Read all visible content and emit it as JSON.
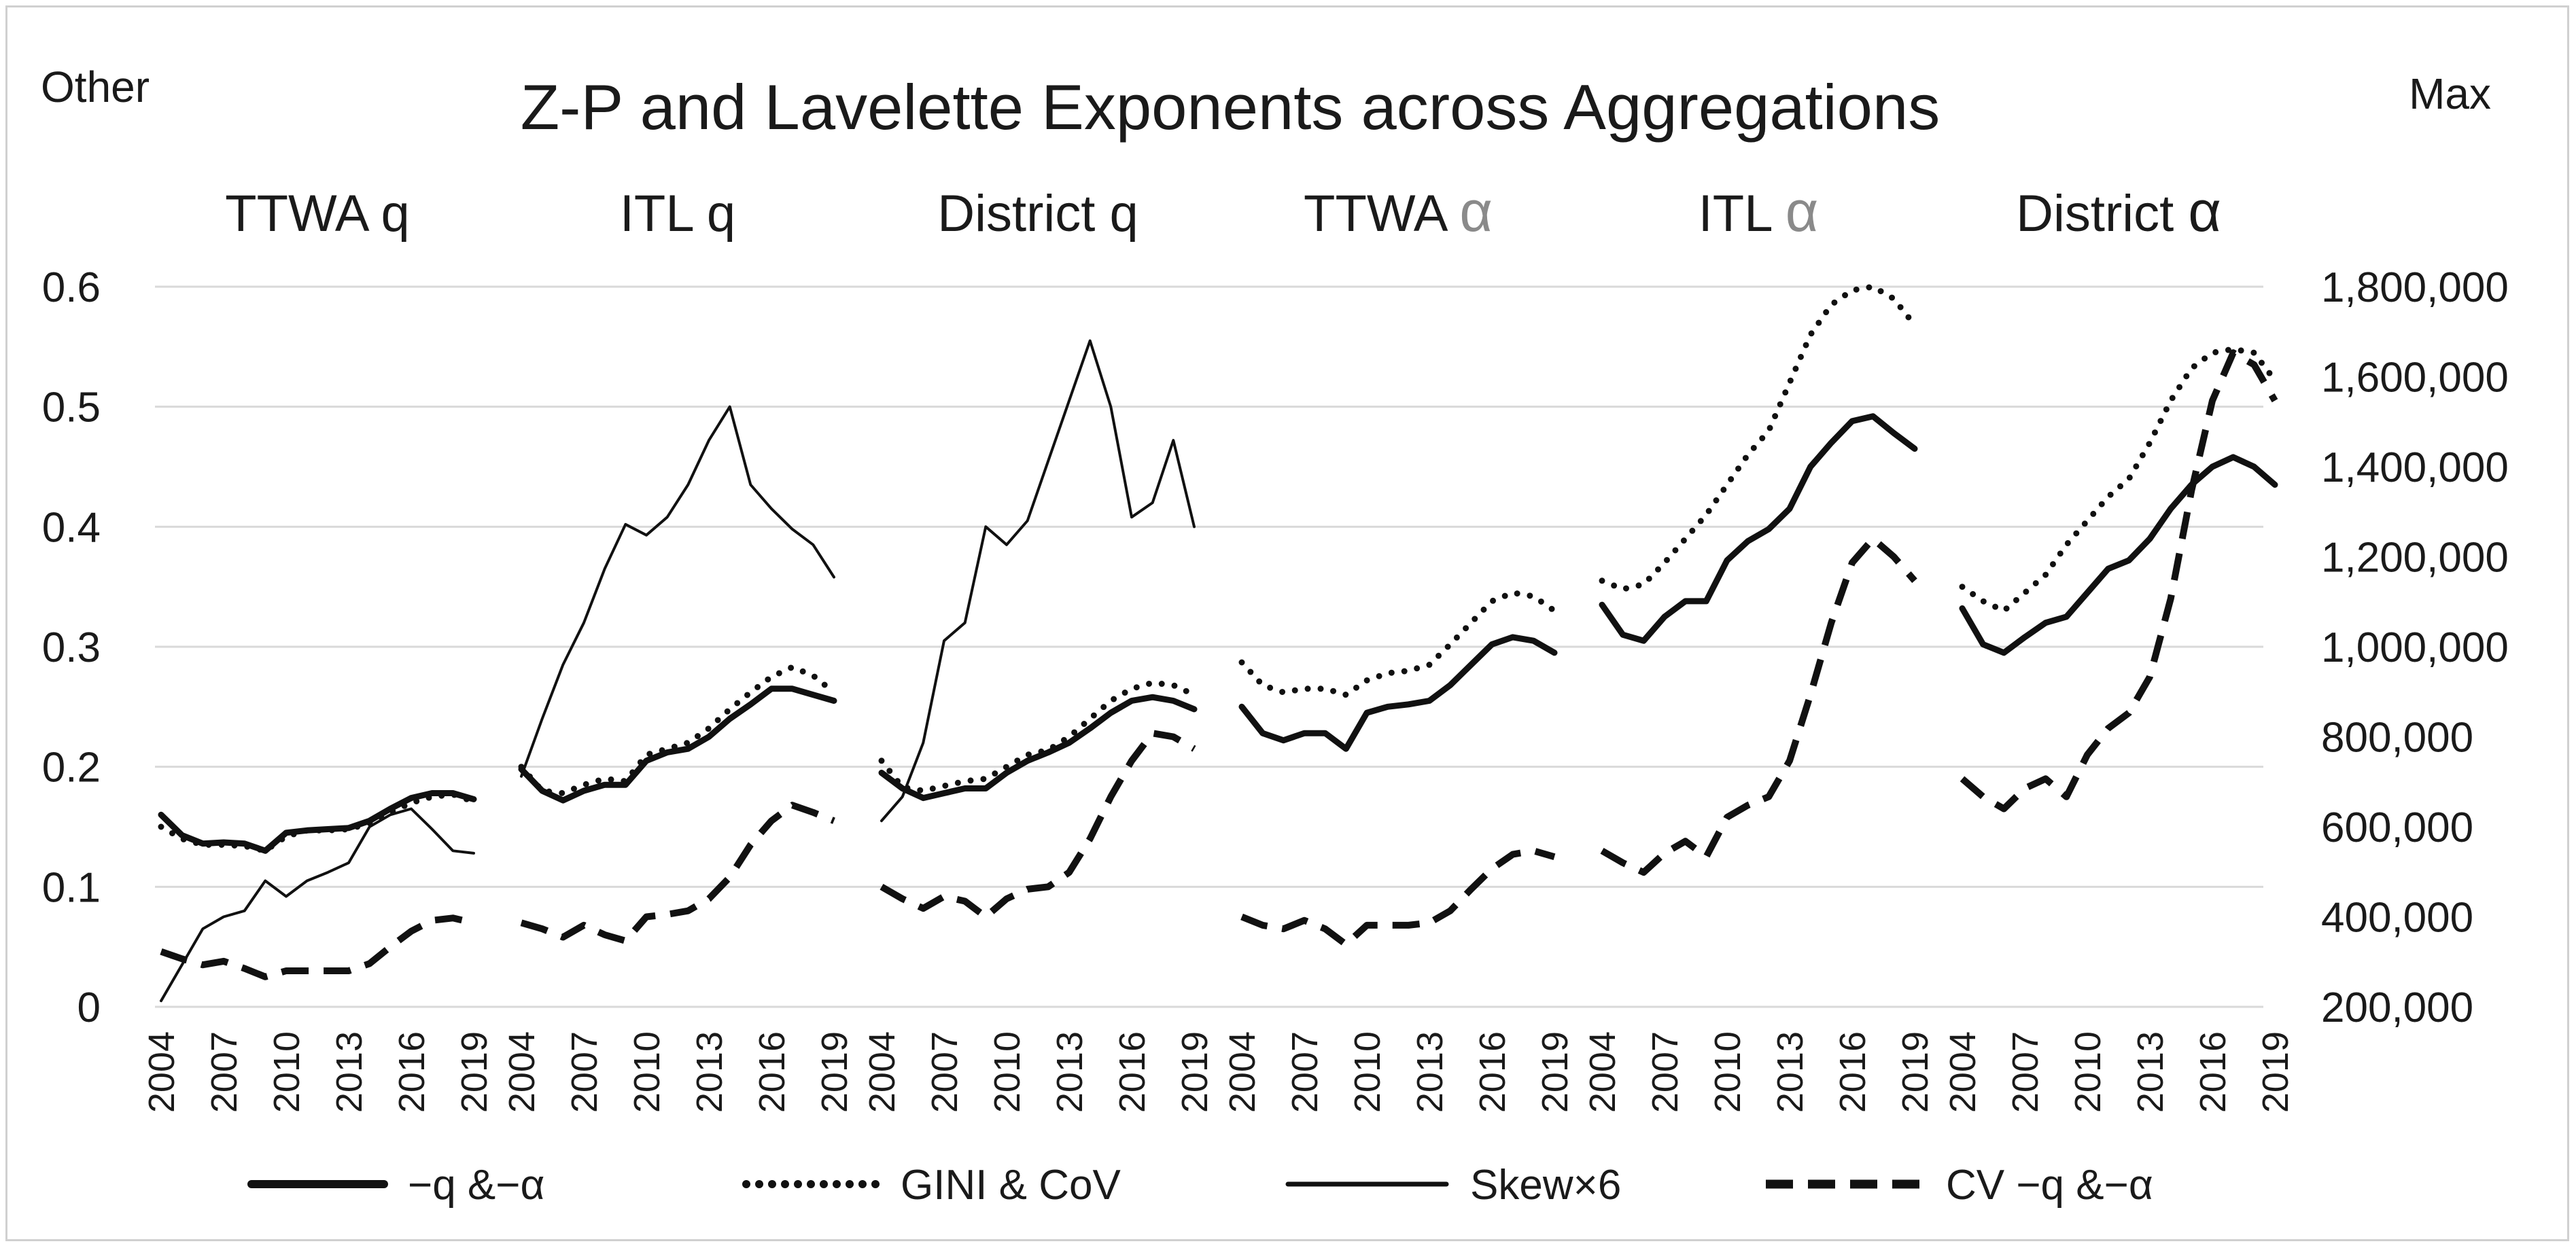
{
  "chart_data": {
    "type": "line",
    "title": "Z-P and Lavelette Exponents across Aggregations",
    "left_axis_label": "Other",
    "right_axis_label": "Max",
    "left_ylim": [
      0,
      0.6
    ],
    "left_ticks": [
      "0",
      "0.1",
      "0.2",
      "0.3",
      "0.4",
      "0.5",
      "0.6"
    ],
    "right_ylim": [
      200000,
      1800000
    ],
    "right_ticks": [
      "200,000",
      "400,000",
      "600,000",
      "800,000",
      "1,000,000",
      "1,200,000",
      "1,400,000",
      "1,600,000",
      "1,800,000"
    ],
    "x_tick_labels": [
      "2004",
      "2007",
      "2010",
      "2013",
      "2016",
      "2019"
    ],
    "grid": "horizontal",
    "legend_position": "bottom",
    "legend": [
      {
        "name": "−q &−α",
        "style": "thick-solid"
      },
      {
        "name": "GINI & CoV",
        "style": "dotted"
      },
      {
        "name": "Skew×6",
        "style": "thin-solid"
      },
      {
        "name": "CV −q &−α",
        "style": "thick-dashed"
      }
    ],
    "groups": [
      {
        "label": "TTWA q",
        "alpha": false,
        "years": [
          2004,
          2005,
          2006,
          2007,
          2008,
          2009,
          2010,
          2011,
          2012,
          2013,
          2014,
          2015,
          2016,
          2017,
          2018,
          2019
        ],
        "series": {
          "neg_q_alpha": [
            0.16,
            0.143,
            0.136,
            0.137,
            0.136,
            0.13,
            0.145,
            0.147,
            0.148,
            0.149,
            0.155,
            0.165,
            0.174,
            0.178,
            0.178,
            0.173
          ],
          "gini_cov": [
            0.15,
            0.14,
            0.135,
            0.135,
            0.134,
            0.13,
            0.142,
            0.147,
            0.147,
            0.148,
            0.153,
            0.162,
            0.17,
            0.175,
            0.177,
            0.171
          ],
          "skew_x6": [
            0.005,
            0.035,
            0.065,
            0.075,
            0.08,
            0.105,
            0.092,
            0.105,
            0.112,
            0.12,
            0.15,
            0.16,
            0.165,
            0.148,
            0.13,
            0.128
          ],
          "cv": [
            0.046,
            0.04,
            0.035,
            0.038,
            0.032,
            0.025,
            0.03,
            0.03,
            0.03,
            0.03,
            0.036,
            0.05,
            0.063,
            0.072,
            0.074,
            0.07
          ]
        }
      },
      {
        "label": "ITL q",
        "alpha": false,
        "years": [
          2004,
          2005,
          2006,
          2007,
          2008,
          2009,
          2010,
          2011,
          2012,
          2013,
          2014,
          2015,
          2016,
          2017,
          2018,
          2019
        ],
        "series": {
          "neg_q_alpha": [
            0.198,
            0.18,
            0.172,
            0.18,
            0.185,
            0.185,
            0.205,
            0.212,
            0.215,
            0.225,
            0.24,
            0.252,
            0.265,
            0.265,
            0.26,
            0.255
          ],
          "gini_cov": [
            0.2,
            0.18,
            0.178,
            0.185,
            0.19,
            0.188,
            0.21,
            0.215,
            0.22,
            0.232,
            0.248,
            0.262,
            0.275,
            0.283,
            0.276,
            0.262
          ],
          "skew_x6": [
            0.192,
            0.24,
            0.285,
            0.32,
            0.365,
            0.402,
            0.393,
            0.408,
            0.435,
            0.472,
            0.5,
            0.435,
            0.415,
            0.398,
            0.385,
            0.358
          ],
          "cv": [
            0.07,
            0.065,
            0.058,
            0.068,
            0.06,
            0.055,
            0.075,
            0.077,
            0.08,
            0.09,
            0.108,
            0.135,
            0.155,
            0.168,
            0.162,
            0.155
          ]
        }
      },
      {
        "label": "District q",
        "alpha": false,
        "years": [
          2004,
          2005,
          2006,
          2007,
          2008,
          2009,
          2010,
          2011,
          2012,
          2013,
          2014,
          2015,
          2016,
          2017,
          2018,
          2019
        ],
        "series": {
          "neg_q_alpha": [
            0.195,
            0.182,
            0.174,
            0.178,
            0.182,
            0.182,
            0.195,
            0.205,
            0.212,
            0.22,
            0.232,
            0.245,
            0.255,
            0.258,
            0.255,
            0.248
          ],
          "gini_cov": [
            0.205,
            0.183,
            0.18,
            0.184,
            0.188,
            0.19,
            0.2,
            0.21,
            0.214,
            0.225,
            0.24,
            0.255,
            0.265,
            0.27,
            0.268,
            0.26
          ],
          "skew_x6": [
            0.155,
            0.175,
            0.22,
            0.305,
            0.32,
            0.4,
            0.385,
            0.405,
            0.455,
            0.505,
            0.555,
            0.5,
            0.408,
            0.42,
            0.472,
            0.4
          ],
          "cv": [
            0.1,
            0.09,
            0.082,
            0.092,
            0.088,
            0.075,
            0.09,
            0.098,
            0.1,
            0.112,
            0.14,
            0.175,
            0.205,
            0.228,
            0.225,
            0.215
          ]
        }
      },
      {
        "label": "TTWA α",
        "alpha": true,
        "years": [
          2004,
          2005,
          2006,
          2007,
          2008,
          2009,
          2010,
          2011,
          2012,
          2013,
          2014,
          2015,
          2016,
          2017,
          2018,
          2019
        ],
        "series": {
          "neg_q_alpha": [
            0.25,
            0.228,
            0.222,
            0.228,
            0.228,
            0.215,
            0.245,
            0.25,
            0.252,
            0.255,
            0.268,
            0.285,
            0.302,
            0.308,
            0.305,
            0.295
          ],
          "gini_cov": [
            0.287,
            0.268,
            0.262,
            0.265,
            0.265,
            0.26,
            0.272,
            0.278,
            0.28,
            0.285,
            0.302,
            0.32,
            0.338,
            0.345,
            0.342,
            0.33
          ],
          "cv": [
            0.075,
            0.068,
            0.065,
            0.072,
            0.065,
            0.052,
            0.068,
            0.068,
            0.068,
            0.07,
            0.08,
            0.098,
            0.115,
            0.127,
            0.13,
            0.125
          ]
        }
      },
      {
        "label": "ITL α",
        "alpha": true,
        "years": [
          2004,
          2005,
          2006,
          2007,
          2008,
          2009,
          2010,
          2011,
          2012,
          2013,
          2014,
          2015,
          2016,
          2017,
          2018,
          2019
        ],
        "series": {
          "neg_q_alpha": [
            0.335,
            0.31,
            0.305,
            0.325,
            0.338,
            0.338,
            0.372,
            0.388,
            0.398,
            0.415,
            0.45,
            0.47,
            0.488,
            0.492,
            0.478,
            0.465
          ],
          "gini_cov": [
            0.355,
            0.348,
            0.352,
            0.37,
            0.39,
            0.41,
            0.435,
            0.46,
            0.48,
            0.52,
            0.56,
            0.585,
            0.597,
            0.6,
            0.59,
            0.568
          ],
          "cv": [
            0.13,
            0.12,
            0.112,
            0.128,
            0.138,
            0.125,
            0.158,
            0.168,
            0.175,
            0.205,
            0.26,
            0.32,
            0.37,
            0.39,
            0.375,
            0.355
          ]
        }
      },
      {
        "label": "District α",
        "alpha": true,
        "years": [
          2004,
          2005,
          2006,
          2007,
          2008,
          2009,
          2010,
          2011,
          2012,
          2013,
          2014,
          2015,
          2016,
          2017,
          2018,
          2019
        ],
        "series": {
          "neg_q_alpha": [
            0.332,
            0.302,
            0.295,
            0.308,
            0.32,
            0.325,
            0.345,
            0.365,
            0.372,
            0.39,
            0.415,
            0.435,
            0.45,
            0.458,
            0.45,
            0.435
          ],
          "gini_cov": [
            0.35,
            0.338,
            0.33,
            0.345,
            0.36,
            0.385,
            0.405,
            0.425,
            0.44,
            0.47,
            0.505,
            0.532,
            0.545,
            0.548,
            0.545,
            0.522
          ],
          "cv": [
            0.19,
            0.175,
            0.165,
            0.182,
            0.19,
            0.175,
            0.21,
            0.232,
            0.245,
            0.275,
            0.34,
            0.43,
            0.505,
            0.545,
            0.535,
            0.505
          ]
        }
      }
    ]
  }
}
